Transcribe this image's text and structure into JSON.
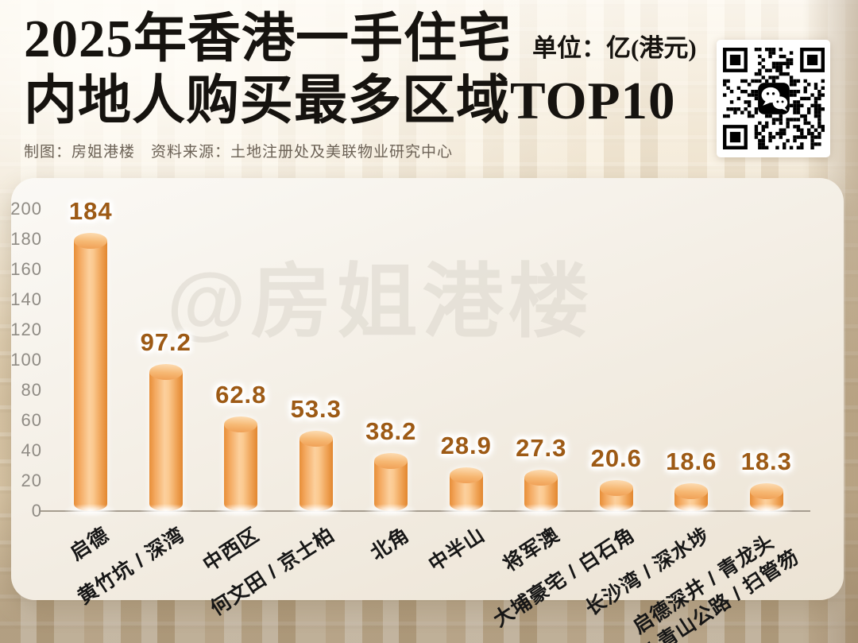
{
  "header": {
    "title_line1": "2025年香港一手住宅",
    "unit_label": "单位：亿(港元)",
    "title_line2": "内地人购买最多区域TOP10",
    "byline": "制图：房姐港楼　资料来源：土地注册处及美联物业研究中心"
  },
  "watermark": "@房姐港楼",
  "qr": {
    "icon": "wechat-icon"
  },
  "colors": {
    "bar_light": "#fcd09d",
    "bar_dark": "#e78e38",
    "value_label": "#9d5a15",
    "axis_line": "#a69d90",
    "tick_text": "#8f8b84",
    "title_text": "#16130f"
  },
  "chart_data": {
    "type": "bar",
    "title": "2025年香港一手住宅内地人购买最多区域TOP10",
    "ylabel": "亿(港元)",
    "categories": [
      "启德",
      "黄竹坑 / 深湾",
      "中西区",
      "何文田 / 京士柏",
      "北角",
      "中半山",
      "将军澳",
      "大埔豪宅 / 白石角",
      "长沙湾 / 深水埗",
      "启德深井 / 青龙头\n/ 青山公路 / 扫管笏"
    ],
    "values": [
      184,
      97.2,
      62.8,
      53.3,
      38.2,
      28.9,
      27.3,
      20.6,
      18.6,
      18.3
    ],
    "ylim": [
      0,
      200
    ],
    "yticks": [
      0,
      20,
      40,
      60,
      80,
      100,
      120,
      140,
      160,
      180,
      200
    ],
    "grid": false,
    "legend": false,
    "bar_style": "cylinder"
  }
}
